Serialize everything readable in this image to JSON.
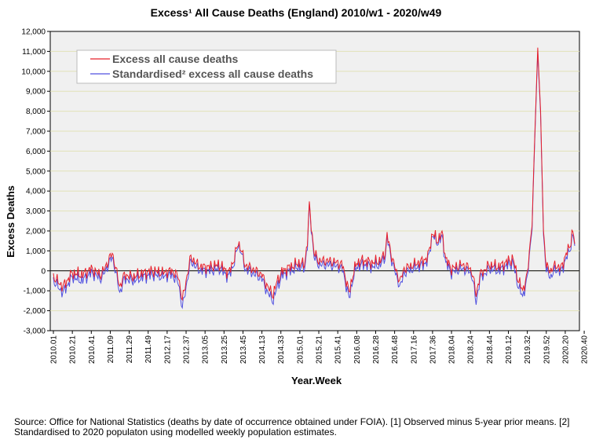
{
  "chart_data": {
    "type": "line",
    "title": "Excess¹ All Cause Deaths (England) 2010/w1 - 2020/w49",
    "xlabel": "Year.Week",
    "ylabel": "Excess Deaths",
    "ylim": [
      -3000,
      12000
    ],
    "yticks": [
      "-3,000",
      "-2,000",
      "-1,000",
      "0",
      "1,000",
      "2,000",
      "3,000",
      "4,000",
      "5,000",
      "6,000",
      "7,000",
      "8,000",
      "9,000",
      "10,000",
      "11,000",
      "12,000"
    ],
    "xticks": [
      "2010.01",
      "2010.21",
      "2010.41",
      "2011.09",
      "2011.29",
      "2011.49",
      "2012.17",
      "2012.37",
      "2013.05",
      "2013.25",
      "2013.45",
      "2014.13",
      "2014.33",
      "2015.01",
      "2015.21",
      "2015.41",
      "2016.08",
      "2016.28",
      "2016.48",
      "2017.16",
      "2017.36",
      "2018.04",
      "2018.24",
      "2018.44",
      "2019.12",
      "2019.32",
      "2019.52",
      "2020.20",
      "2020.40"
    ],
    "grid": "horizontal",
    "legend_position": "top-left",
    "series": [
      {
        "name": "Excess all cause deaths",
        "color": "#e8202a",
        "key_points": [
          [
            0,
            -300
          ],
          [
            10,
            -800
          ],
          [
            20,
            -100
          ],
          [
            30,
            -200
          ],
          [
            40,
            100
          ],
          [
            50,
            -200
          ],
          [
            55,
            200
          ],
          [
            62,
            900
          ],
          [
            65,
            300
          ],
          [
            70,
            -800
          ],
          [
            75,
            -200
          ],
          [
            85,
            -300
          ],
          [
            95,
            -100
          ],
          [
            105,
            0
          ],
          [
            115,
            -100
          ],
          [
            125,
            0
          ],
          [
            132,
            -300
          ],
          [
            136,
            -1500
          ],
          [
            140,
            -500
          ],
          [
            145,
            700
          ],
          [
            150,
            400
          ],
          [
            155,
            200
          ],
          [
            165,
            200
          ],
          [
            175,
            300
          ],
          [
            185,
            -100
          ],
          [
            190,
            500
          ],
          [
            195,
            1400
          ],
          [
            198,
            1100
          ],
          [
            202,
            300
          ],
          [
            210,
            100
          ],
          [
            220,
            -200
          ],
          [
            226,
            -800
          ],
          [
            232,
            -1200
          ],
          [
            236,
            -500
          ],
          [
            242,
            0
          ],
          [
            250,
            200
          ],
          [
            260,
            400
          ],
          [
            265,
            300
          ],
          [
            268,
            1500
          ],
          [
            270,
            3300
          ],
          [
            272,
            2300
          ],
          [
            275,
            900
          ],
          [
            280,
            500
          ],
          [
            290,
            500
          ],
          [
            300,
            400
          ],
          [
            305,
            300
          ],
          [
            312,
            -1100
          ],
          [
            316,
            -200
          ],
          [
            320,
            400
          ],
          [
            325,
            500
          ],
          [
            330,
            500
          ],
          [
            335,
            400
          ],
          [
            345,
            500
          ],
          [
            350,
            900
          ],
          [
            352,
            1800
          ],
          [
            356,
            900
          ],
          [
            362,
            -100
          ],
          [
            366,
            -500
          ],
          [
            370,
            100
          ],
          [
            380,
            300
          ],
          [
            390,
            500
          ],
          [
            395,
            700
          ],
          [
            400,
            1900
          ],
          [
            405,
            1500
          ],
          [
            410,
            1900
          ],
          [
            414,
            600
          ],
          [
            420,
            100
          ],
          [
            430,
            300
          ],
          [
            438,
            200
          ],
          [
            442,
            -100
          ],
          [
            446,
            -1200
          ],
          [
            450,
            -200
          ],
          [
            460,
            300
          ],
          [
            470,
            200
          ],
          [
            480,
            500
          ],
          [
            485,
            600
          ],
          [
            490,
            -400
          ],
          [
            495,
            -1000
          ],
          [
            500,
            -200
          ],
          [
            505,
            2500
          ],
          [
            508,
            7000
          ],
          [
            511,
            11200
          ],
          [
            514,
            8000
          ],
          [
            517,
            2000
          ],
          [
            520,
            200
          ],
          [
            525,
            0
          ],
          [
            530,
            300
          ],
          [
            535,
            100
          ],
          [
            540,
            700
          ],
          [
            545,
            1300
          ],
          [
            548,
            2000
          ],
          [
            550,
            1400
          ]
        ]
      },
      {
        "name": "Standardised² excess all cause deaths",
        "color": "#5050e0",
        "key_points": [
          [
            0,
            -500
          ],
          [
            10,
            -1100
          ],
          [
            20,
            -300
          ],
          [
            30,
            -500
          ],
          [
            40,
            -100
          ],
          [
            50,
            -400
          ],
          [
            55,
            0
          ],
          [
            62,
            700
          ],
          [
            65,
            100
          ],
          [
            70,
            -1100
          ],
          [
            75,
            -400
          ],
          [
            85,
            -500
          ],
          [
            95,
            -300
          ],
          [
            105,
            -200
          ],
          [
            115,
            -300
          ],
          [
            125,
            -200
          ],
          [
            132,
            -600
          ],
          [
            136,
            -1900
          ],
          [
            140,
            -800
          ],
          [
            145,
            500
          ],
          [
            150,
            200
          ],
          [
            155,
            0
          ],
          [
            165,
            0
          ],
          [
            175,
            100
          ],
          [
            185,
            -300
          ],
          [
            190,
            300
          ],
          [
            195,
            1300
          ],
          [
            198,
            1000
          ],
          [
            202,
            100
          ],
          [
            210,
            -100
          ],
          [
            220,
            -400
          ],
          [
            226,
            -1100
          ],
          [
            232,
            -1500
          ],
          [
            236,
            -800
          ],
          [
            242,
            -200
          ],
          [
            250,
            0
          ],
          [
            260,
            200
          ],
          [
            265,
            100
          ],
          [
            268,
            1300
          ],
          [
            270,
            3200
          ],
          [
            272,
            2200
          ],
          [
            275,
            700
          ],
          [
            280,
            300
          ],
          [
            290,
            300
          ],
          [
            300,
            200
          ],
          [
            305,
            100
          ],
          [
            312,
            -1400
          ],
          [
            316,
            -400
          ],
          [
            320,
            200
          ],
          [
            325,
            300
          ],
          [
            330,
            300
          ],
          [
            335,
            200
          ],
          [
            345,
            300
          ],
          [
            350,
            700
          ],
          [
            352,
            1700
          ],
          [
            356,
            700
          ],
          [
            362,
            -300
          ],
          [
            366,
            -800
          ],
          [
            370,
            -100
          ],
          [
            380,
            100
          ],
          [
            390,
            300
          ],
          [
            395,
            500
          ],
          [
            400,
            1800
          ],
          [
            405,
            1400
          ],
          [
            410,
            1700
          ],
          [
            414,
            400
          ],
          [
            420,
            -100
          ],
          [
            430,
            100
          ],
          [
            438,
            0
          ],
          [
            442,
            -300
          ],
          [
            446,
            -1600
          ],
          [
            450,
            -400
          ],
          [
            460,
            100
          ],
          [
            470,
            0
          ],
          [
            480,
            300
          ],
          [
            485,
            400
          ],
          [
            490,
            -700
          ],
          [
            495,
            -1300
          ],
          [
            500,
            -400
          ],
          [
            505,
            2300
          ],
          [
            508,
            6800
          ],
          [
            511,
            11000
          ],
          [
            514,
            7800
          ],
          [
            517,
            1800
          ],
          [
            520,
            0
          ],
          [
            525,
            -300
          ],
          [
            530,
            100
          ],
          [
            535,
            -100
          ],
          [
            540,
            500
          ],
          [
            545,
            1100
          ],
          [
            548,
            1800
          ],
          [
            550,
            1300
          ]
        ]
      }
    ]
  },
  "source_note": "Source: Office for National Statistics (deaths by date of occurrence obtained under FOIA). [1] Observed minus 5-year prior means. [2] Standardised to 2020 populaton using modelled weekly population estimates."
}
